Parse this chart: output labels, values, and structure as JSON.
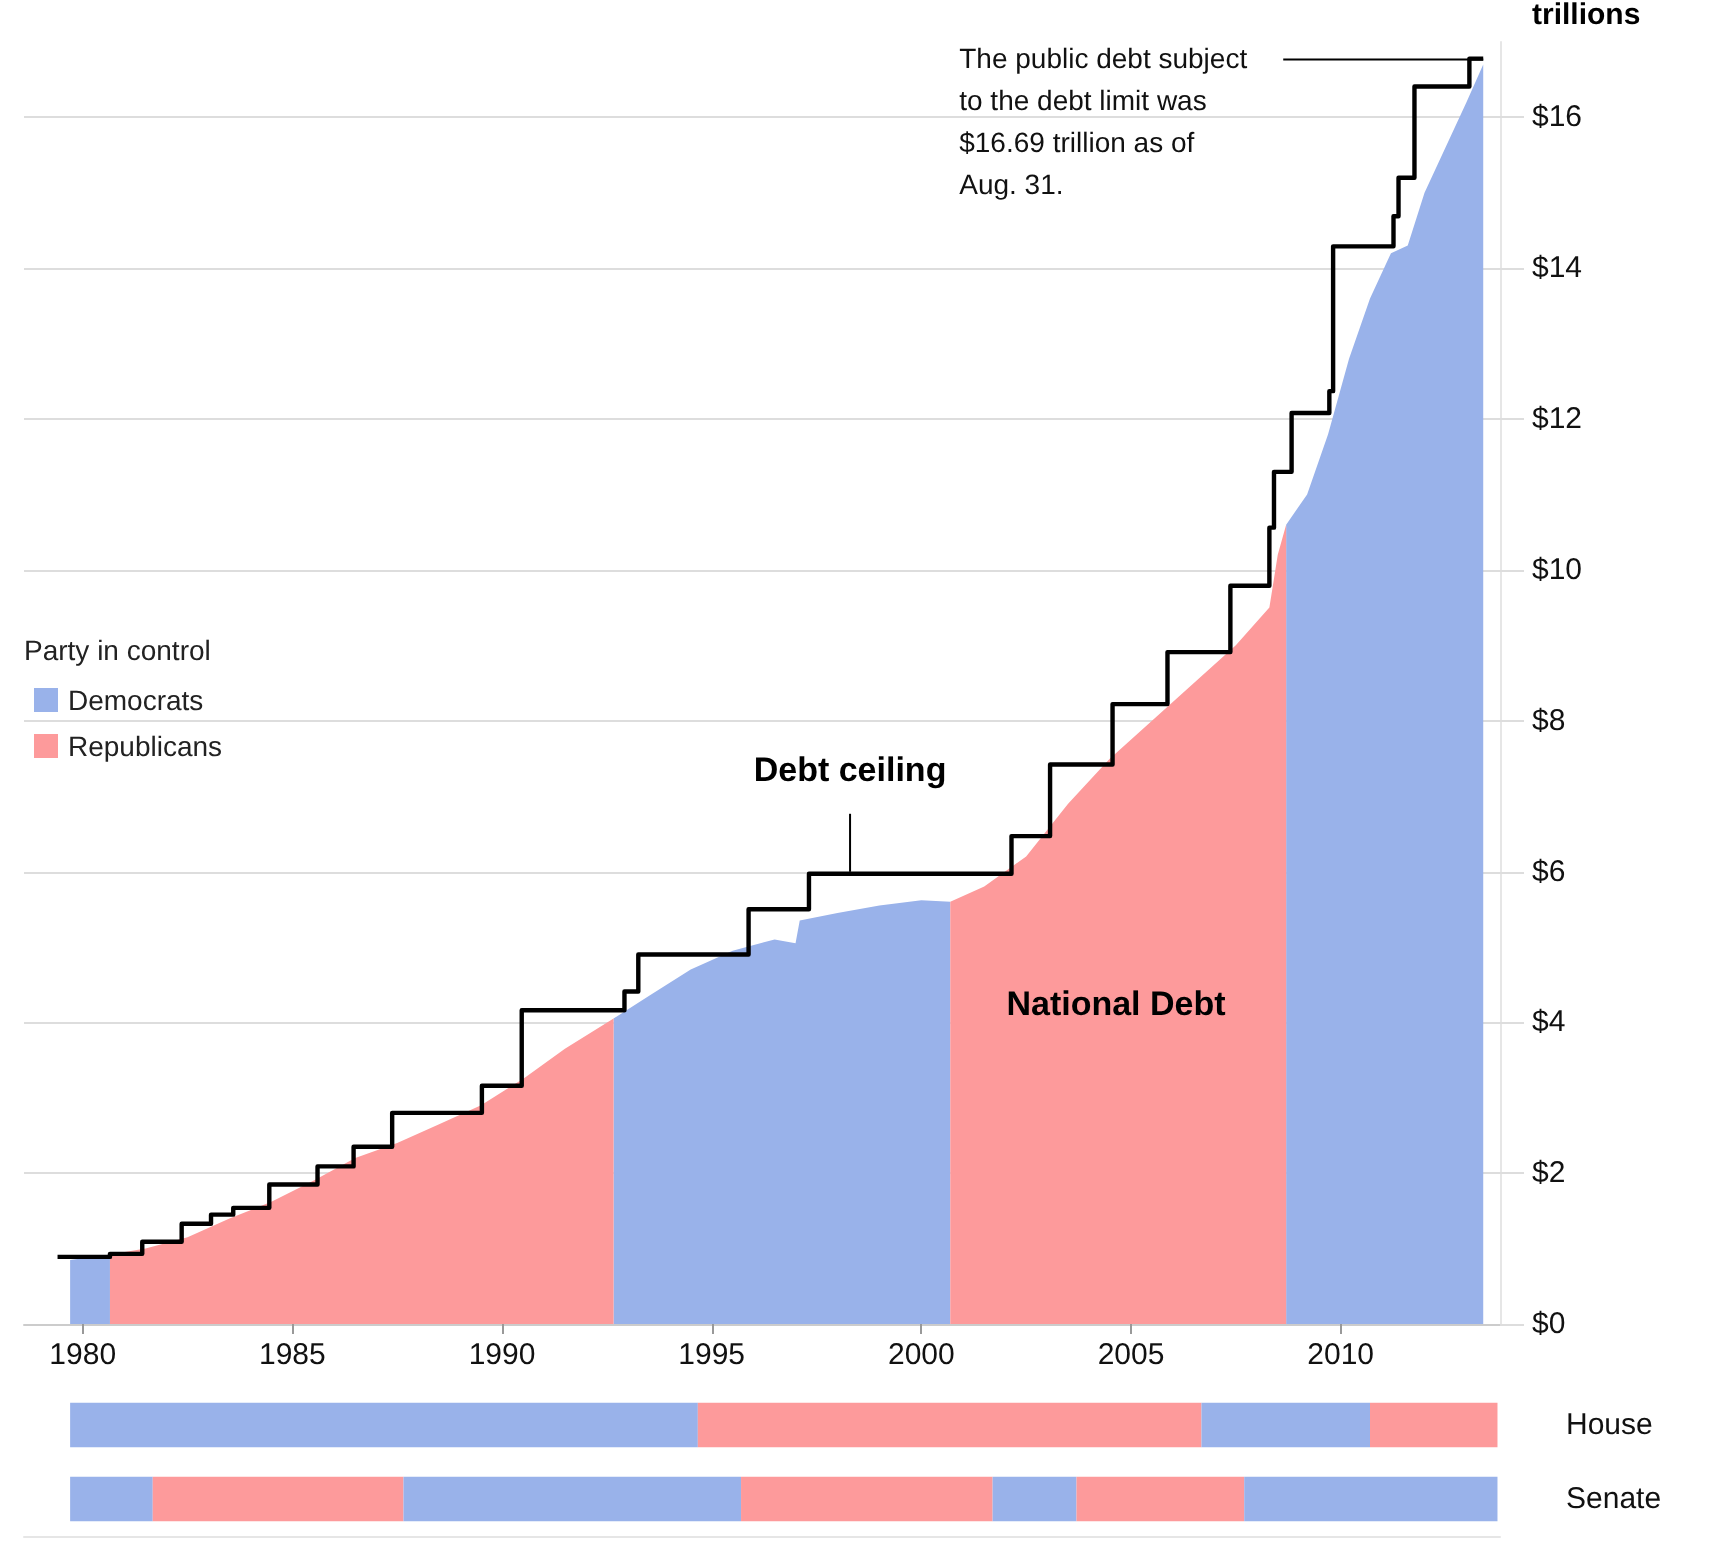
{
  "chart_data": [
    {
      "type": "area",
      "ylabel": "trillions",
      "legend_title": "Party in control",
      "legend": "left",
      "grid": "y",
      "x": [
        1979.7,
        1980.65,
        1981.5,
        1982.5,
        1983.5,
        1984.5,
        1985.5,
        1986.5,
        1987.5,
        1988.5,
        1989.5,
        1990.5,
        1991.5,
        1992.66,
        1993.5,
        1994.5,
        1995.5,
        1996.5,
        1997.0,
        1997.1,
        1998,
        1999,
        2000,
        2000.69,
        2001.5,
        2002.5,
        2003.5,
        2004.5,
        2005.5,
        2006.5,
        2007.5,
        2008.3,
        2008.5,
        2008.7,
        2009.2,
        2009.7,
        2010.2,
        2010.7,
        2011.2,
        2011.6,
        2012.0,
        2012.5,
        2013.0,
        2013.4
      ],
      "series": [
        {
          "name": "Democrats",
          "color": "#99b2ea",
          "values": [
            0.85,
            0.92,
            null,
            null,
            null,
            null,
            null,
            null,
            null,
            null,
            null,
            null,
            null,
            4.05,
            4.35,
            4.7,
            4.95,
            5.1,
            5.05,
            5.35,
            5.45,
            5.55,
            5.62,
            5.6,
            null,
            null,
            null,
            null,
            null,
            null,
            null,
            null,
            null,
            10.6,
            11.0,
            11.8,
            12.8,
            13.6,
            14.2,
            14.3,
            15.0,
            15.6,
            16.2,
            16.7
          ]
        },
        {
          "name": "Republicans",
          "color": "#fd9a9b",
          "values": [
            null,
            0.92,
            1.0,
            1.15,
            1.4,
            1.62,
            1.9,
            2.2,
            2.4,
            2.65,
            2.9,
            3.25,
            3.65,
            4.05,
            null,
            null,
            null,
            null,
            null,
            null,
            null,
            null,
            null,
            5.6,
            5.8,
            6.2,
            6.9,
            7.5,
            8.0,
            8.5,
            9.0,
            9.5,
            10.2,
            10.6,
            null,
            null,
            null,
            null,
            null,
            null,
            null,
            null,
            null,
            null
          ]
        },
        {
          "type": "step",
          "color": "#000000",
          "x": [
            1979.4,
            1980.65,
            1981.42,
            1982.36,
            1983.06,
            1983.59,
            1984.45,
            1985.6,
            1986.46,
            1987.38,
            1989.52,
            1990.47,
            1992.92,
            1993.25,
            1995.88,
            1997.32,
            2002.15,
            2003.07,
            2004.56,
            2005.87,
            2007.37,
            2008.3,
            2008.41,
            2008.83,
            2009.73,
            2009.82,
            2011.26,
            2011.38,
            2011.76,
            2013.07,
            2013.4
          ],
          "values": [
            0.89,
            0.93,
            1.09,
            1.33,
            1.45,
            1.54,
            1.85,
            2.09,
            2.35,
            2.8,
            3.16,
            4.16,
            4.41,
            4.9,
            5.5,
            5.97,
            6.47,
            7.42,
            8.22,
            8.91,
            9.79,
            10.56,
            11.3,
            12.08,
            12.37,
            14.29,
            14.69,
            15.2,
            16.41,
            16.78,
            16.78
          ]
        }
      ],
      "xlim": [
        1978.6,
        2013.8
      ],
      "xticks": [
        1980,
        1985,
        1990,
        1995,
        2000,
        2005,
        2010
      ],
      "ylim": [
        0,
        17
      ],
      "yticks": [
        {
          "value": 0,
          "label": "$0"
        },
        {
          "value": 2,
          "label": "$2"
        },
        {
          "value": 4,
          "label": "$4"
        },
        {
          "value": 6,
          "label": "$6"
        },
        {
          "value": 8,
          "label": "$8"
        },
        {
          "value": 10,
          "label": "$10"
        },
        {
          "value": 12,
          "label": "$12"
        },
        {
          "value": 14,
          "label": "$14"
        },
        {
          "value": 16,
          "label": "$16"
        }
      ],
      "annotations": [
        {
          "text": "The public debt subject to the debt limit was $16.69 trillion as of Aug. 31.",
          "x": 2013.4,
          "y": 16.69
        },
        {
          "text": "Debt ceiling",
          "x": 1998.3,
          "y": 5.97
        },
        "National Debt"
      ]
    },
    {
      "type": "bar",
      "orientation": "horizontal",
      "categories": [
        "House",
        "Senate"
      ],
      "xlim": [
        1978.6,
        2013.8
      ],
      "tick_labels": "y",
      "legend": false,
      "series": [
        {
          "color": "#99b2ea",
          "base": [
            1979.7,
            1979.7
          ],
          "values": [
            14.97,
            1.97
          ]
        },
        {
          "color": "#fd9a9b",
          "base": [
            1994.67,
            1981.67
          ],
          "values": [
            12.01,
            5.98
          ]
        },
        {
          "color": "#99b2ea",
          "base": [
            2006.68,
            1987.65
          ],
          "values": [
            4.02,
            8.05
          ]
        },
        {
          "color": "#fd9a9b",
          "base": [
            2010.7,
            1995.7
          ],
          "values": [
            3.04,
            6.0
          ]
        },
        {
          "color": "#99b2ea",
          "base": [
            null,
            2001.7
          ],
          "values": [
            null,
            2.0
          ]
        },
        {
          "color": "#fd9a9b",
          "base": [
            null,
            2003.7
          ],
          "values": [
            null,
            4.0
          ]
        },
        {
          "color": "#99b2ea",
          "base": [
            null,
            2007.7
          ],
          "values": [
            null,
            6.04
          ]
        }
      ]
    }
  ]
}
